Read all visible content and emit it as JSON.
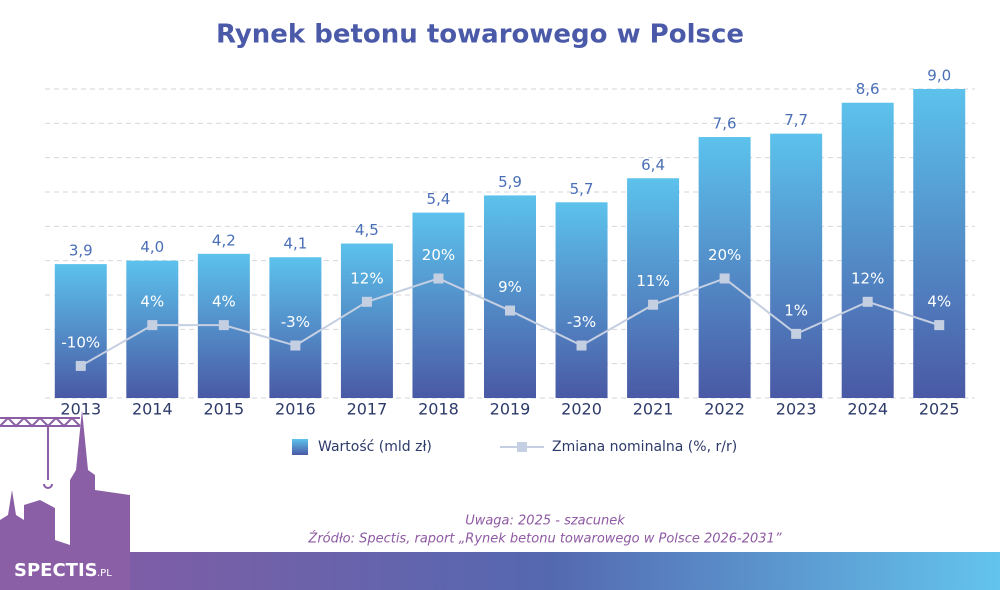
{
  "chart_data": {
    "type": "bar",
    "title": "Rynek betonu towarowego w Polsce",
    "categories": [
      "2013",
      "2014",
      "2015",
      "2016",
      "2017",
      "2018",
      "2019",
      "2020",
      "2021",
      "2022",
      "2023",
      "2024",
      "2025"
    ],
    "series": [
      {
        "name": "Wartość (mld zł)",
        "type": "bar",
        "gradient": [
          "#5cc2ec",
          "#4a59a5"
        ],
        "label_color": "#4a6fb7",
        "values": [
          3.9,
          4.0,
          4.2,
          4.1,
          4.5,
          5.4,
          5.9,
          5.7,
          6.4,
          7.6,
          7.7,
          8.6,
          9.0
        ],
        "value_labels": [
          "3,9",
          "4,0",
          "4,2",
          "4,1",
          "4,5",
          "5,4",
          "5,9",
          "5,7",
          "6,4",
          "7,6",
          "7,7",
          "8,6",
          "9,0"
        ]
      },
      {
        "name": "Zmiana nominalna (%, r/r)",
        "type": "line",
        "axis": "y2",
        "color": "#c5cfe2",
        "label_color": "#ffffff",
        "values": [
          -10,
          4,
          4,
          -3,
          12,
          20,
          9,
          -3,
          11,
          20,
          1,
          12,
          4
        ],
        "value_labels": [
          "-10%",
          "4%",
          "4%",
          "-3%",
          "12%",
          "20%",
          "9%",
          "-3%",
          "11%",
          "20%",
          "1%",
          "12%",
          "4%"
        ]
      }
    ],
    "ylim": [
      0,
      9
    ],
    "yticks": [
      0,
      1,
      2,
      3,
      4,
      5,
      6,
      7,
      8,
      9
    ],
    "y2lim": [
      -21,
      85
    ],
    "grid": true,
    "notes": [
      "Uwaga: 2025 - szacunek",
      "Źródło: Spectis, raport „Rynek betonu towarowego w Polsce 2026-2031”"
    ]
  },
  "logo": {
    "name": "SPECTIS",
    "suffix": ".PL"
  }
}
